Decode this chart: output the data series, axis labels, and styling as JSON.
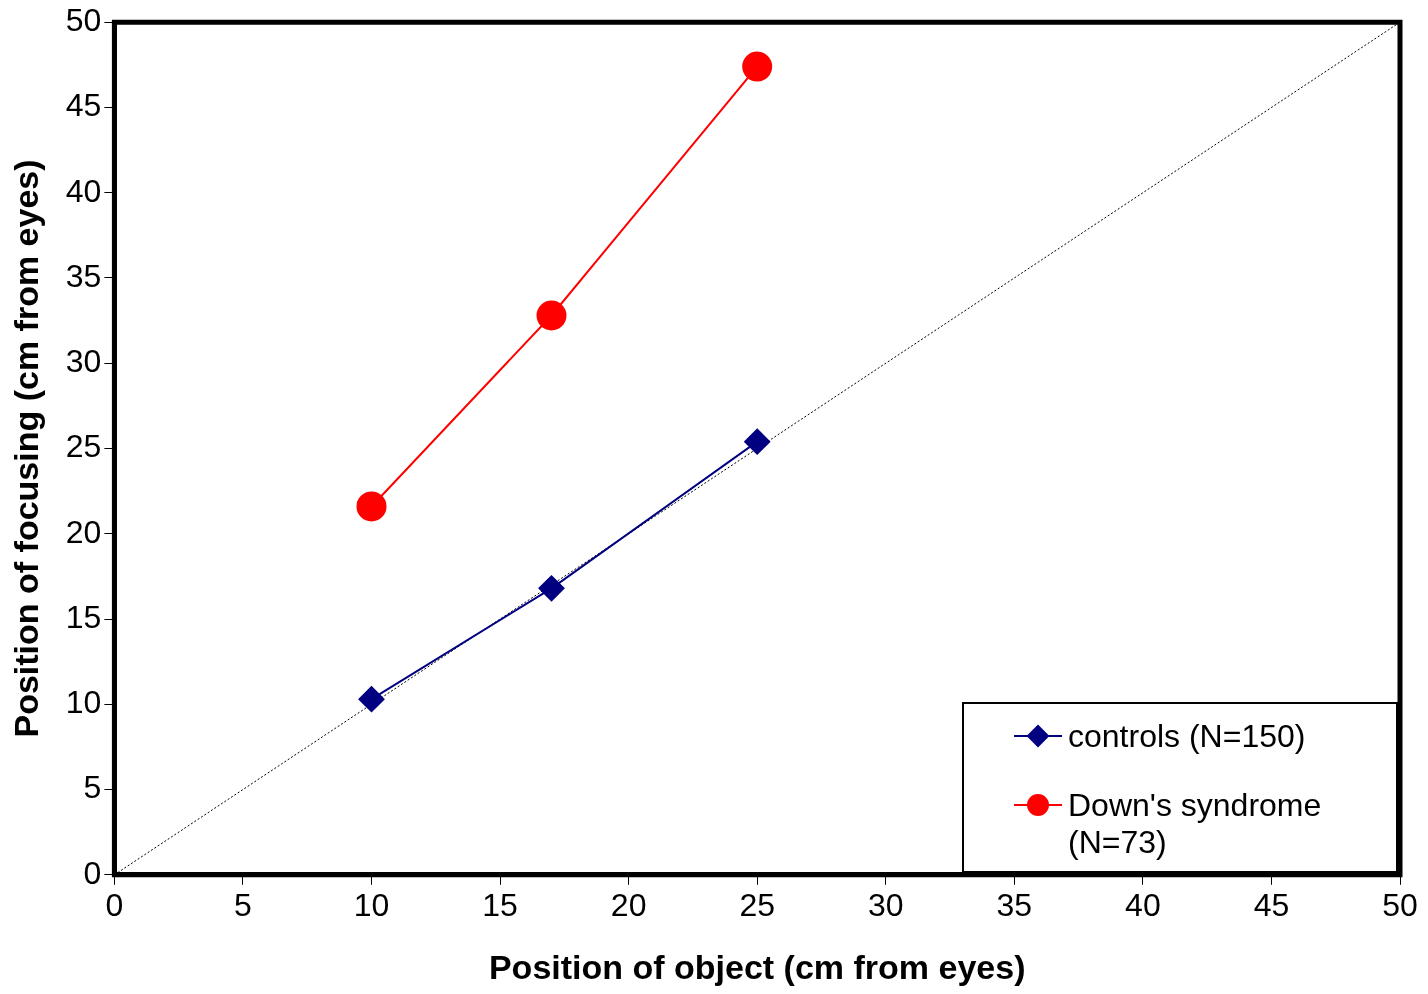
{
  "chart_data": {
    "type": "line",
    "xlabel": "Position of object (cm from eyes)",
    "ylabel": "Position of focusing (cm from eyes)",
    "xlim": [
      0,
      50
    ],
    "ylim": [
      0,
      50
    ],
    "xticks": [
      0,
      5,
      10,
      15,
      20,
      25,
      30,
      35,
      40,
      45,
      50
    ],
    "yticks": [
      0,
      5,
      10,
      15,
      20,
      25,
      30,
      35,
      40,
      45,
      50
    ],
    "grid": false,
    "legend": "bottom right",
    "series": [
      {
        "name": "controls (N=150)",
        "color": "#000080",
        "x": [
          10,
          17,
          25
        ],
        "values": [
          10.3,
          16.8,
          25.4
        ],
        "marker": "diamond",
        "line_style": "solid"
      },
      {
        "name": "Down's syndrome (N=73)",
        "color": "#ff0000",
        "x": [
          10,
          17,
          25
        ],
        "values": [
          21.6,
          32.8,
          47.4
        ],
        "marker": "circle",
        "line_style": "solid"
      },
      {
        "color": "#000000",
        "x": [
          0,
          50
        ],
        "values": [
          0,
          50
        ],
        "marker": "none",
        "line_style": "dotted"
      }
    ]
  }
}
